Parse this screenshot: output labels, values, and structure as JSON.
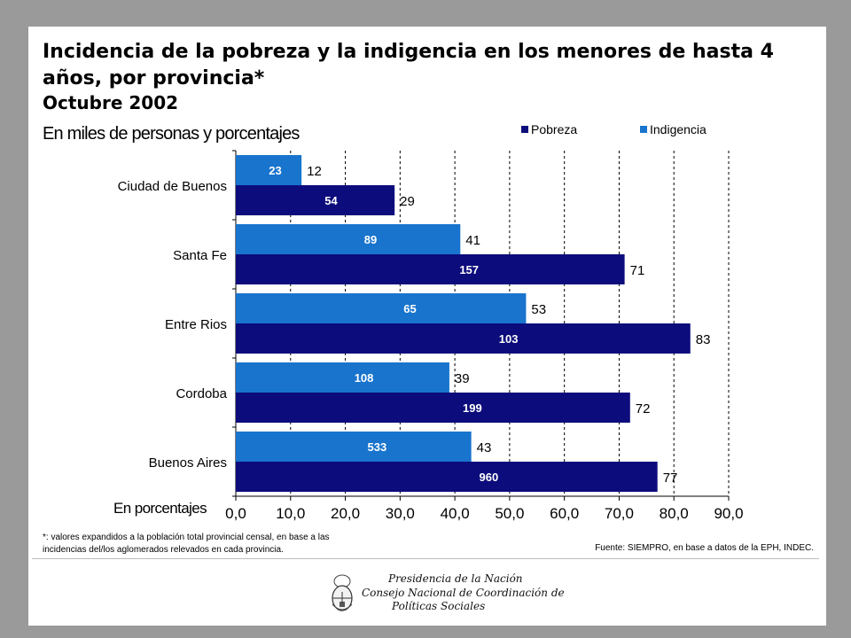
{
  "title": "Incidencia de la pobreza y la indigencia en los menores de hasta 4 años, por provincia*",
  "subtitle": "Octubre 2002",
  "units": "En miles de personas y porcentajes",
  "percent_axis_label": "En porcentajes",
  "footnote": "*: valores expandidos a la población total provincial censal, en base a las incidencias del/los aglomerados relevados en cada provincia.",
  "source": "Fuente: SIEMPRO, en base a datos de la EPH, INDEC.",
  "institution": {
    "line1": "Presidencia de la Nación",
    "line2": "Consejo Nacional de Coordinación de",
    "line3": "Políticas Sociales"
  },
  "colors": {
    "pobreza": "#0c0c7c",
    "indigencia": "#1874cd",
    "frame": "#9a9a9a"
  },
  "chart_data": {
    "type": "bar",
    "orientation": "horizontal",
    "categories": [
      "Ciudad de Buenos",
      "Santa Fe",
      "Entre Rios",
      "Cordoba",
      "Buenos Aires"
    ],
    "series": [
      {
        "name": "Indigencia",
        "values": [
          12,
          41,
          53,
          39,
          43
        ],
        "labels": [
          "23",
          "89",
          "65",
          "108",
          "533"
        ]
      },
      {
        "name": "Pobreza",
        "values": [
          29,
          71,
          83,
          72,
          77
        ],
        "labels": [
          "54",
          "157",
          "103",
          "199",
          "960"
        ]
      }
    ],
    "xlim": [
      0,
      90
    ],
    "xticks": [
      "0,0",
      "10,0",
      "20,0",
      "30,0",
      "40,0",
      "50,0",
      "60,0",
      "70,0",
      "80,0",
      "90,0"
    ],
    "grid": "vertical dashed",
    "legend": "top-right",
    "legend_order": [
      "Pobreza",
      "Indigencia"
    ]
  }
}
